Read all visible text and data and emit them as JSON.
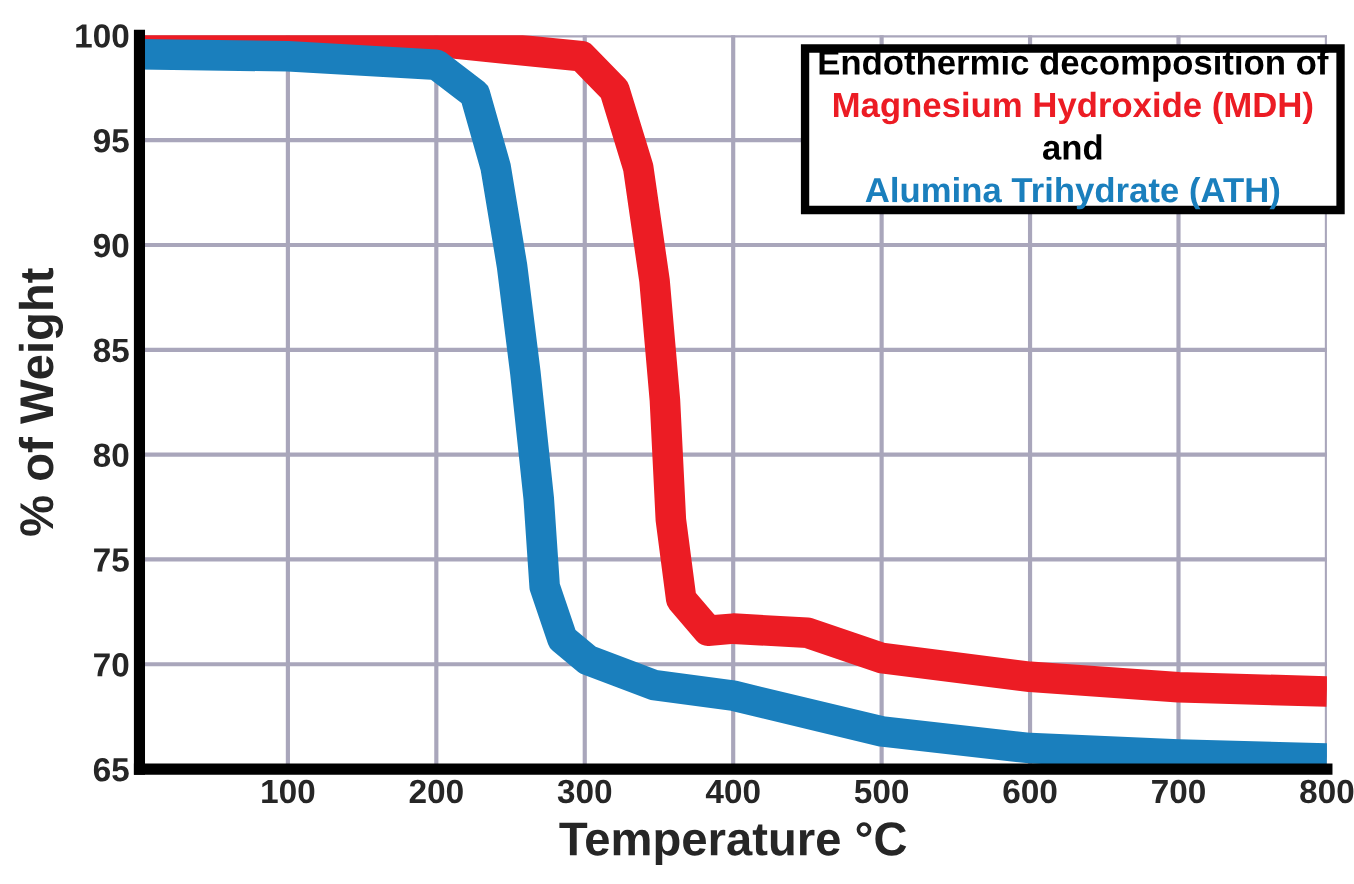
{
  "chart_data": {
    "type": "line",
    "legend_title": "Endothermic decomposition of",
    "annotations": [
      "and"
    ],
    "xlabel": "Temperature °C",
    "ylabel": "% of Weight",
    "xlim": [
      0,
      800
    ],
    "xticks": [
      100,
      200,
      300,
      400,
      500,
      600,
      700,
      800
    ],
    "ylim": [
      65,
      100
    ],
    "yticks": [
      65,
      70,
      75,
      80,
      85,
      90,
      95,
      100
    ],
    "grid": true,
    "legend": "top right",
    "series": [
      {
        "name": "Magnesium Hydroxide (MDH)",
        "color": "#ec1c24",
        "x": [
          0,
          100,
          200,
          298,
          320,
          336,
          347,
          354,
          358,
          365,
          383,
          400,
          450,
          500,
          600,
          700,
          800
        ],
        "values": [
          99.9,
          99.8,
          99.7,
          99.0,
          97.4,
          93.7,
          88.3,
          82.6,
          76.9,
          73.1,
          71.6,
          71.7,
          71.5,
          70.3,
          69.4,
          68.9,
          68.7
        ]
      },
      {
        "name": "Alumina Trihydrate (ATH)",
        "color": "#1a7fbd",
        "x": [
          0,
          100,
          200,
          226,
          240,
          251,
          260,
          269,
          273,
          285,
          302,
          347,
          400,
          500,
          600,
          700,
          800
        ],
        "values": [
          99.1,
          99.0,
          98.6,
          97.2,
          93.7,
          89.0,
          83.9,
          77.9,
          73.7,
          71.2,
          70.2,
          69.0,
          68.5,
          66.8,
          66.0,
          65.7,
          65.5
        ]
      }
    ]
  }
}
